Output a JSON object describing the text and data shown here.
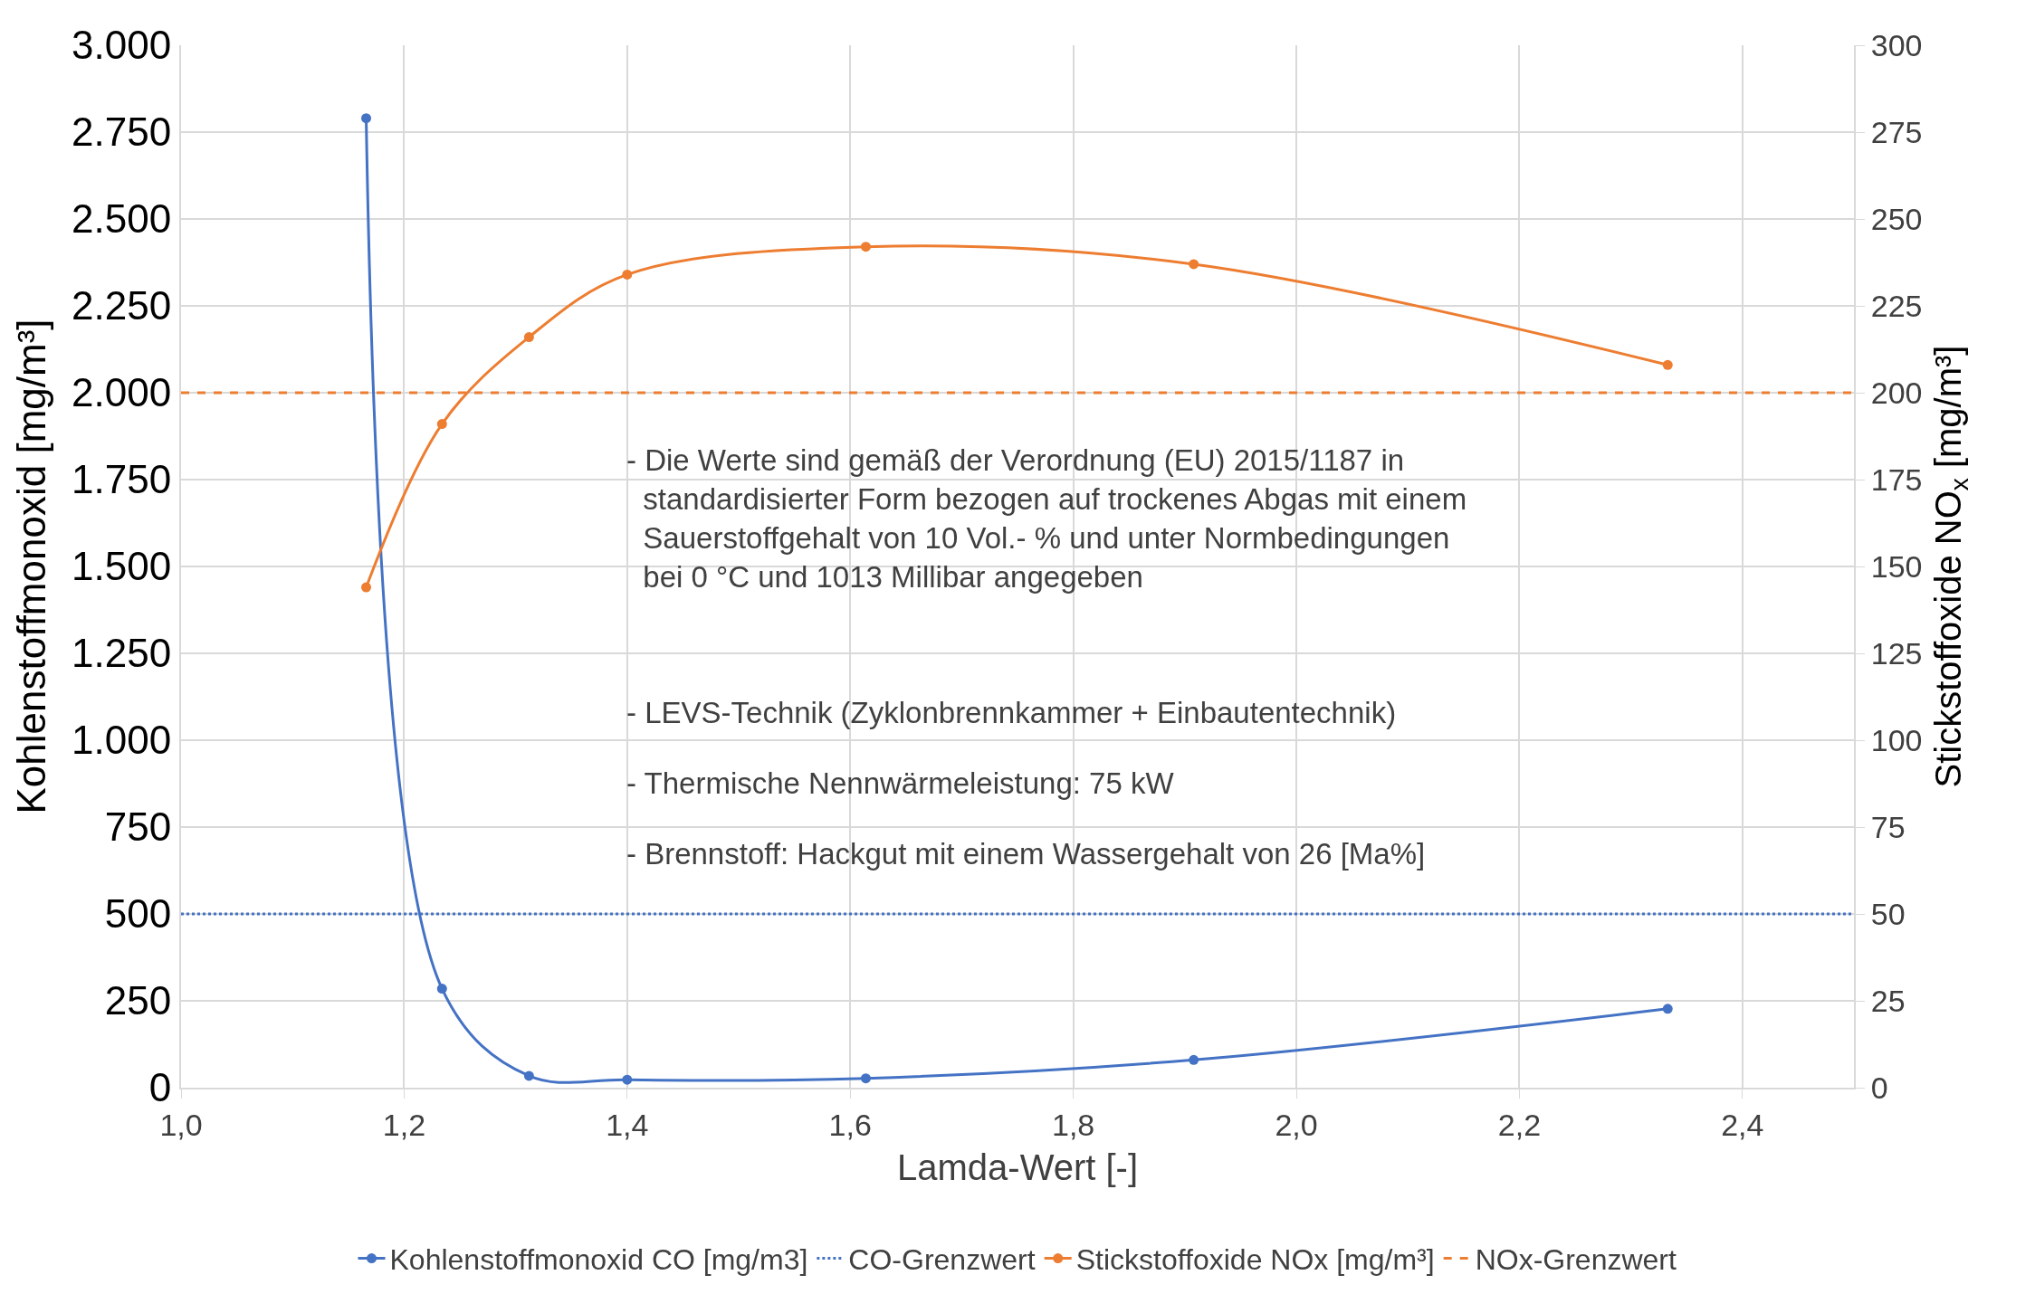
{
  "chart_data": {
    "type": "line",
    "xlabel": "Lamda-Wert [-]",
    "ylabel": "Kohlenstoffmonoxid [mg/m³]",
    "y2label": "Stickstoffoxide NO$_{x}$ [mg/m³]",
    "xlim": [
      1.0,
      2.5
    ],
    "xticks": [
      {
        "value": 1.0,
        "label": "1,0"
      },
      {
        "value": 1.2,
        "label": "1,2"
      },
      {
        "value": 1.4,
        "label": "1,4"
      },
      {
        "value": 1.6,
        "label": "1,6"
      },
      {
        "value": 1.8,
        "label": "1,8"
      },
      {
        "value": 2.0,
        "label": "2,0"
      },
      {
        "value": 2.2,
        "label": "2,2"
      },
      {
        "value": 2.4,
        "label": "2,4"
      }
    ],
    "ylim": [
      0,
      3000
    ],
    "yticks": [
      0,
      250,
      500,
      750,
      {
        "value": 1000,
        "label": "1.000"
      },
      {
        "value": 1250,
        "label": "1.250"
      },
      {
        "value": 1500,
        "label": "1.500"
      },
      {
        "value": 1750,
        "label": "1.750"
      },
      {
        "value": 2000,
        "label": "2.000"
      },
      {
        "value": 2250,
        "label": "2.250"
      },
      {
        "value": 2500,
        "label": "2.500"
      },
      {
        "value": 2750,
        "label": "2.750"
      },
      {
        "value": 3000,
        "label": "3.000"
      }
    ],
    "y2lim": [
      0,
      300
    ],
    "y2ticks": [
      0,
      25,
      50,
      75,
      100,
      125,
      150,
      175,
      200,
      225,
      250,
      275,
      300
    ],
    "grid": true,
    "legend": "bottom",
    "series": [
      {
        "name": "Kohlenstoffmonoxid CO [mg/m3]",
        "color": "#4472c4",
        "axis": "y",
        "marker": "circle",
        "line_style": "solid",
        "x": [
          1.166,
          1.234,
          1.312,
          1.4,
          1.614,
          1.908,
          2.333
        ],
        "values": [
          2790,
          285,
          34,
          23,
          27,
          80,
          227
        ]
      },
      {
        "name": "CO-Grenzwert",
        "color": "#4472c4",
        "axis": "y",
        "marker": "none",
        "line_style": "dotted",
        "x": [
          1.0,
          2.5
        ],
        "values": [
          500,
          500
        ]
      },
      {
        "name": "Stickstoffoxide NOx [mg/m³]",
        "color": "#ed7d31",
        "axis": "y2",
        "marker": "circle",
        "line_style": "solid",
        "x": [
          1.166,
          1.234,
          1.312,
          1.4,
          1.614,
          1.908,
          2.333
        ],
        "values": [
          144,
          191,
          216,
          234,
          242,
          237,
          208
        ]
      },
      {
        "name": "NOx-Grenzwert",
        "color": "#ed7d31",
        "axis": "y2",
        "marker": "none",
        "line_style": "dashed",
        "x": [
          1.0,
          2.5
        ],
        "values": [
          200,
          200
        ]
      }
    ],
    "annotations": [
      "- Die Werte sind gemäß der Verordnung (EU) 2015/1187 in\n  standardisierter Form bezogen auf trockenes Abgas mit einem\n  Sauerstoffgehalt von 10 Vol.- % und unter Normbedingungen\n  bei 0 °C und 1013 Millibar angegeben",
      "- LEVS-Technik (Zyklonbrennkammer + Einbautentechnik)",
      "- Thermische Nennwärmeleistung: 75 kW",
      "- Brennstoff: Hackgut mit einem Wassergehalt von 26 [Ma%]"
    ]
  }
}
